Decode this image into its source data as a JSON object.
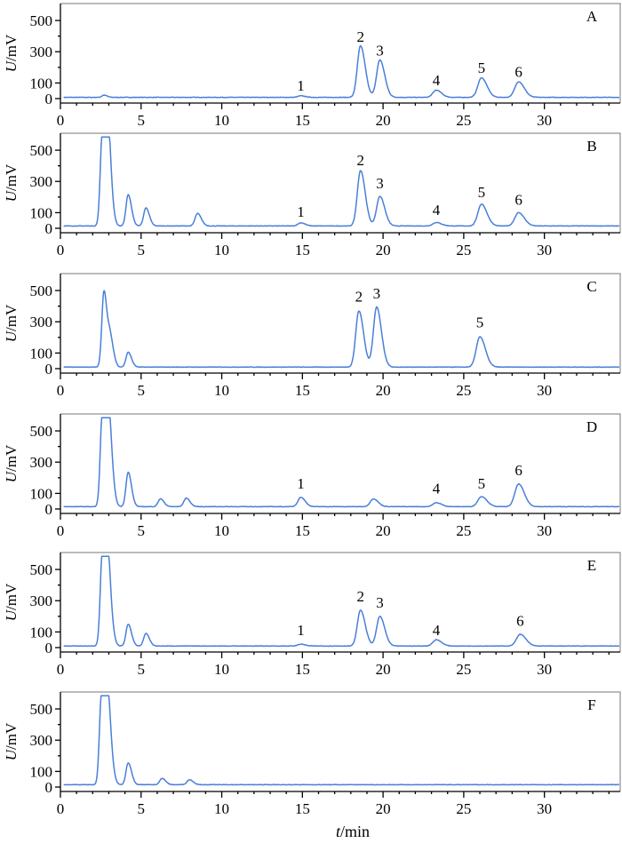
{
  "figure": {
    "xlabel_var": "t",
    "xlabel_unit": "/min",
    "ylabel_var": "U",
    "ylabel_unit": "/mV"
  },
  "chart_data": {
    "type": "line",
    "color": "#4a7fd8",
    "x_range": [
      0,
      34.7
    ],
    "y_range": [
      0,
      580
    ],
    "x_ticks": [
      "0",
      "5",
      "10",
      "15",
      "20",
      "25",
      "30"
    ],
    "y_ticks": [
      "0",
      "100",
      "300",
      "500"
    ],
    "xlabel": "t/min",
    "ylabel": "U/mV",
    "panels": [
      {
        "label": "A",
        "baseline": 8,
        "features": [
          [
            2.7,
            14
          ],
          [
            14.9,
            10
          ],
          [
            18.6,
            330
          ],
          [
            19.8,
            240
          ],
          [
            23.3,
            46
          ],
          [
            26.1,
            125
          ],
          [
            28.4,
            100
          ]
        ],
        "peak_labels": [
          {
            "text": "1",
            "t": 14.9,
            "level": 50
          },
          {
            "text": "2",
            "t": 18.6,
            "level": 365
          },
          {
            "text": "3",
            "t": 19.8,
            "level": 275
          },
          {
            "text": "4",
            "t": 23.3,
            "level": 85
          },
          {
            "text": "5",
            "t": 26.1,
            "level": 165
          },
          {
            "text": "6",
            "t": 28.4,
            "level": 140
          }
        ]
      },
      {
        "label": "B",
        "baseline": 15,
        "features": [
          [
            2.6,
            580
          ],
          [
            2.85,
            580
          ],
          [
            3.05,
            200
          ],
          [
            4.2,
            200
          ],
          [
            5.3,
            115
          ],
          [
            8.5,
            80
          ],
          [
            14.9,
            20
          ],
          [
            18.6,
            355
          ],
          [
            19.8,
            190
          ],
          [
            23.3,
            22
          ],
          [
            26.1,
            140
          ],
          [
            28.4,
            85
          ]
        ],
        "peak_labels": [
          {
            "text": "1",
            "t": 14.9,
            "level": 75
          },
          {
            "text": "2",
            "t": 18.6,
            "level": 405
          },
          {
            "text": "3",
            "t": 19.8,
            "level": 255
          },
          {
            "text": "4",
            "t": 23.3,
            "level": 85
          },
          {
            "text": "5",
            "t": 26.1,
            "level": 200
          },
          {
            "text": "6",
            "t": 28.4,
            "level": 150
          }
        ]
      },
      {
        "label": "C",
        "baseline": 10,
        "features": [
          [
            2.7,
            490
          ],
          [
            3.1,
            170
          ],
          [
            4.2,
            95
          ],
          [
            18.5,
            360
          ],
          [
            19.6,
            385
          ],
          [
            26.0,
            195
          ]
        ],
        "peak_labels": [
          {
            "text": "2",
            "t": 18.5,
            "level": 430
          },
          {
            "text": "3",
            "t": 19.6,
            "level": 450
          },
          {
            "text": "5",
            "t": 26.0,
            "level": 265
          }
        ]
      },
      {
        "label": "D",
        "baseline": 15,
        "features": [
          [
            2.6,
            580
          ],
          [
            2.85,
            580
          ],
          [
            3.1,
            260
          ],
          [
            4.2,
            220
          ],
          [
            6.2,
            50
          ],
          [
            7.8,
            55
          ],
          [
            14.9,
            60
          ],
          [
            19.4,
            50
          ],
          [
            23.3,
            25
          ],
          [
            26.1,
            65
          ],
          [
            28.4,
            145
          ]
        ],
        "peak_labels": [
          {
            "text": "1",
            "t": 14.9,
            "level": 130
          },
          {
            "text": "4",
            "t": 23.3,
            "level": 100
          },
          {
            "text": "5",
            "t": 26.1,
            "level": 130
          },
          {
            "text": "6",
            "t": 28.4,
            "level": 215
          }
        ]
      },
      {
        "label": "E",
        "baseline": 10,
        "features": [
          [
            2.6,
            580
          ],
          [
            2.85,
            580
          ],
          [
            3.1,
            130
          ],
          [
            4.2,
            140
          ],
          [
            5.3,
            80
          ],
          [
            14.9,
            12
          ],
          [
            18.6,
            230
          ],
          [
            19.8,
            190
          ],
          [
            23.3,
            40
          ],
          [
            28.5,
            75
          ]
        ],
        "peak_labels": [
          {
            "text": "1",
            "t": 14.9,
            "level": 80
          },
          {
            "text": "2",
            "t": 18.6,
            "level": 295
          },
          {
            "text": "3",
            "t": 19.8,
            "level": 255
          },
          {
            "text": "4",
            "t": 23.3,
            "level": 80
          },
          {
            "text": "6",
            "t": 28.5,
            "level": 140
          }
        ]
      },
      {
        "label": "F",
        "baseline": 15,
        "features": [
          [
            2.55,
            580
          ],
          [
            2.85,
            580
          ],
          [
            3.1,
            140
          ],
          [
            4.2,
            140
          ],
          [
            6.3,
            40
          ],
          [
            8.0,
            32
          ]
        ],
        "peak_labels": []
      }
    ]
  }
}
